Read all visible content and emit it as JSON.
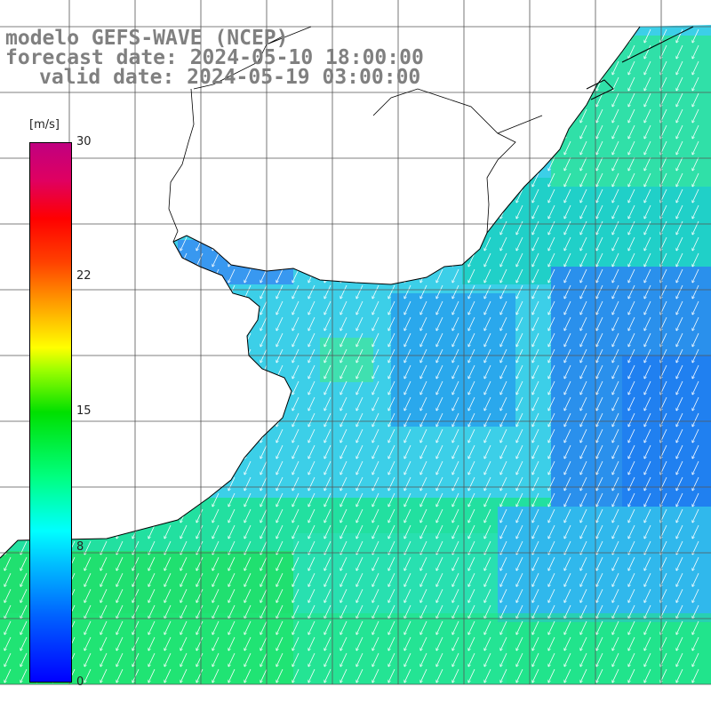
{
  "titles": {
    "line1": "modelo GEFS-WAVE (NCEP)",
    "line2": "forecast date: 2024-05-10 18:00:00",
    "line3": "valid date: 2024-05-19 03:00:00"
  },
  "colorbar": {
    "unit": "[m/s]",
    "ticks": [
      "30",
      "22",
      "15",
      "8",
      "0"
    ],
    "tick_values": [
      30,
      22,
      15,
      8,
      0
    ],
    "colors": [
      "#0000ff",
      "#00c0ff",
      "#00ffff",
      "#00e000",
      "#ffff00",
      "#ff8000",
      "#ff0000",
      "#c00080"
    ]
  },
  "map": {
    "land_color": "#ffffff",
    "coast_color": "#000000",
    "grid_color": "#555555",
    "arrow_color": "#ffffff",
    "wind_direction": "from north-east toward south-west"
  }
}
